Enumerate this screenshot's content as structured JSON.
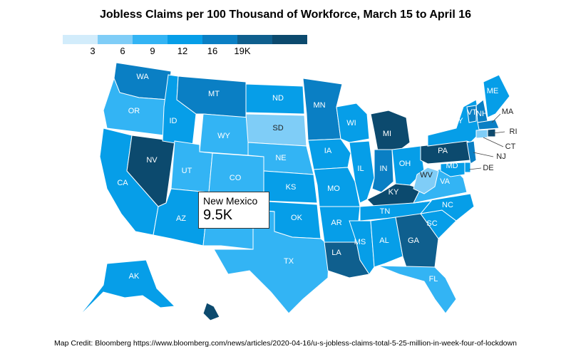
{
  "title": "Jobless Claims per 100 Thousand of Workforce, March 15 to April 16",
  "legend": {
    "colors": [
      "#d2ecfb",
      "#7fcdf7",
      "#33b4f4",
      "#069ee8",
      "#0a7fc4",
      "#0f5f8e",
      "#0c4a6e"
    ],
    "labels": [
      "3",
      "6",
      "9",
      "12",
      "16",
      "19K"
    ]
  },
  "tooltip": {
    "name": "New Mexico",
    "value": "9.5K"
  },
  "states": [
    {
      "code": "WA",
      "color": "#0a7fc4"
    },
    {
      "code": "OR",
      "color": "#33b4f4"
    },
    {
      "code": "CA",
      "color": "#069ee8"
    },
    {
      "code": "NV",
      "color": "#0c4a6e"
    },
    {
      "code": "ID",
      "color": "#069ee8"
    },
    {
      "code": "MT",
      "color": "#0a7fc4"
    },
    {
      "code": "WY",
      "color": "#33b4f4"
    },
    {
      "code": "UT",
      "color": "#33b4f4"
    },
    {
      "code": "AZ",
      "color": "#069ee8"
    },
    {
      "code": "CO",
      "color": "#33b4f4"
    },
    {
      "code": "NM",
      "color": "#33b4f4"
    },
    {
      "code": "ND",
      "color": "#069ee8"
    },
    {
      "code": "SD",
      "color": "#7fcdf7"
    },
    {
      "code": "NE",
      "color": "#33b4f4"
    },
    {
      "code": "KS",
      "color": "#069ee8"
    },
    {
      "code": "OK",
      "color": "#069ee8"
    },
    {
      "code": "TX",
      "color": "#33b4f4"
    },
    {
      "code": "MN",
      "color": "#0a7fc4"
    },
    {
      "code": "IA",
      "color": "#069ee8"
    },
    {
      "code": "MO",
      "color": "#069ee8"
    },
    {
      "code": "AR",
      "color": "#069ee8"
    },
    {
      "code": "LA",
      "color": "#0f5f8e"
    },
    {
      "code": "WI",
      "color": "#069ee8"
    },
    {
      "code": "IL",
      "color": "#069ee8"
    },
    {
      "code": "MI",
      "color": "#0c4a6e"
    },
    {
      "code": "IN",
      "color": "#0a7fc4"
    },
    {
      "code": "OH",
      "color": "#069ee8"
    },
    {
      "code": "KY",
      "color": "#0c4a6e"
    },
    {
      "code": "TN",
      "color": "#069ee8"
    },
    {
      "code": "MS",
      "color": "#069ee8"
    },
    {
      "code": "AL",
      "color": "#069ee8"
    },
    {
      "code": "GA",
      "color": "#0f5f8e"
    },
    {
      "code": "FL",
      "color": "#33b4f4"
    },
    {
      "code": "SC",
      "color": "#069ee8"
    },
    {
      "code": "NC",
      "color": "#069ee8"
    },
    {
      "code": "VA",
      "color": "#33b4f4"
    },
    {
      "code": "WV",
      "color": "#7fcdf7"
    },
    {
      "code": "PA",
      "color": "#0c4a6e"
    },
    {
      "code": "NY",
      "color": "#069ee8"
    },
    {
      "code": "VT",
      "color": "#0a7fc4"
    },
    {
      "code": "NH",
      "color": "#0a7fc4"
    },
    {
      "code": "ME",
      "color": "#069ee8"
    },
    {
      "code": "MA",
      "color": "#0a7fc4"
    },
    {
      "code": "RI",
      "color": "#0c4a6e"
    },
    {
      "code": "CT",
      "color": "#7fcdf7"
    },
    {
      "code": "NJ",
      "color": "#0a7fc4"
    },
    {
      "code": "DE",
      "color": "#069ee8"
    },
    {
      "code": "MD",
      "color": "#069ee8"
    },
    {
      "code": "AK",
      "color": "#069ee8"
    },
    {
      "code": "HI",
      "color": "#0c4a6e"
    }
  ],
  "credit": "Map Credit: Bloomberg https://www.bloomberg.com/news/articles/2020-04-16/u-s-jobless-claims-total-5-25-million-in-week-four-of-lockdown"
}
